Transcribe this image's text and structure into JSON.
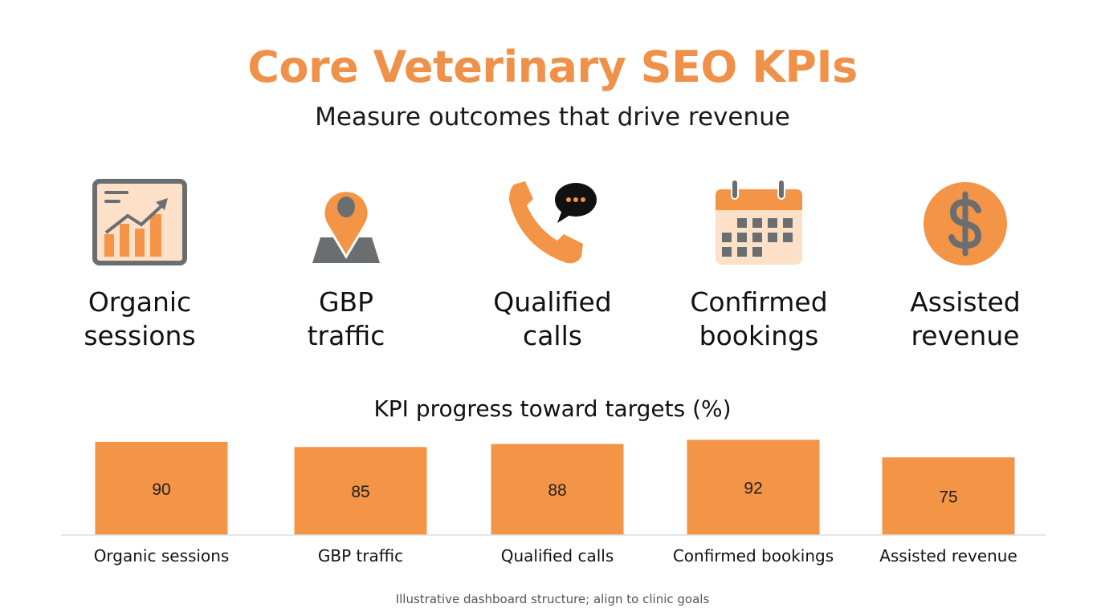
{
  "header": {
    "title": "Core Veterinary SEO KPIs",
    "subtitle": "Measure outcomes that drive revenue"
  },
  "kpis": [
    {
      "icon": "analytics-chart-icon",
      "line1": "Organic",
      "line2": "sessions"
    },
    {
      "icon": "map-pin-icon",
      "line1": "GBP",
      "line2": "traffic"
    },
    {
      "icon": "phone-chat-icon",
      "line1": "Qualified",
      "line2": "calls"
    },
    {
      "icon": "calendar-icon",
      "line1": "Confirmed",
      "line2": "bookings"
    },
    {
      "icon": "dollar-coin-icon",
      "line1": "Assisted",
      "line2": "revenue"
    }
  ],
  "colors": {
    "accent": "#F0914A",
    "bar": "#F39446",
    "icon_gray": "#6B6E70",
    "icon_peach": "#FDE0C8"
  },
  "chart_data": {
    "type": "bar",
    "title": "KPI progress toward targets (%)",
    "categories": [
      "Organic sessions",
      "GBP traffic",
      "Qualified calls",
      "Confirmed bookings",
      "Assisted revenue"
    ],
    "values": [
      90,
      85,
      88,
      92,
      75
    ],
    "xlabel": "",
    "ylabel": "",
    "ylim": [
      0,
      100
    ],
    "grid": false,
    "data_labels": true
  },
  "footnote": "Illustrative dashboard structure; align to clinic goals"
}
